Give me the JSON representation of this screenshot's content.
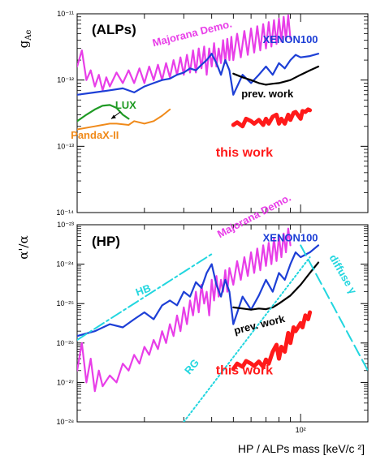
{
  "figure": {
    "xlabel": "HP / ALPs mass [keV/c ²]",
    "x_tick_label": "10²"
  },
  "chart_data": [
    {
      "type": "line",
      "panel": "top",
      "title": "(ALPs)",
      "ylabel": "g_Ae",
      "ylog": true,
      "xlog": true,
      "ylim": [
        1e-14,
        1e-11
      ],
      "xlim": [
        10,
        200
      ],
      "y_tick_labels": [
        "10⁻¹⁴",
        "10⁻¹³",
        "10⁻¹²",
        "10⁻¹¹"
      ],
      "series": [
        {
          "name": "Majorana Demo.",
          "color": "#e83ee8",
          "width": 2.2,
          "x": [
            10,
            10.5,
            11,
            11.5,
            12,
            12.5,
            13,
            13.5,
            14,
            15,
            16,
            17,
            18,
            19,
            20,
            21,
            22,
            23,
            24,
            25,
            26,
            27,
            28,
            29,
            30,
            31,
            32,
            33,
            34,
            35,
            36,
            37,
            38,
            39,
            40,
            41,
            42,
            43,
            44,
            45,
            46,
            47,
            48,
            49,
            50,
            52,
            54,
            56,
            58,
            60,
            62,
            64,
            66,
            68,
            70,
            72,
            74,
            76,
            78,
            80,
            82,
            84,
            86,
            88,
            90
          ],
          "y": [
            1.6e-12,
            2.8e-12,
            1e-12,
            1.4e-12,
            8e-13,
            1.2e-12,
            7e-13,
            1.1e-12,
            8e-13,
            1.3e-12,
            9e-13,
            1.4e-12,
            9e-13,
            1.5e-12,
            9e-13,
            1.6e-12,
            1e-12,
            1.7e-12,
            1e-12,
            1.8e-12,
            1.1e-12,
            2e-12,
            1.2e-12,
            2.2e-12,
            1.2e-12,
            2.4e-12,
            1.3e-12,
            2.8e-12,
            1.3e-12,
            3e-12,
            1.5e-12,
            3.2e-12,
            1.2e-12,
            3e-12,
            1.6e-12,
            3.6e-12,
            1.6e-12,
            3e-12,
            1.8e-12,
            4e-12,
            1.8e-12,
            4.2e-12,
            2e-12,
            4.5e-12,
            2e-12,
            5e-12,
            2.2e-12,
            5.5e-12,
            2.4e-12,
            6e-12,
            2.6e-12,
            6.5e-12,
            2.8e-12,
            7e-12,
            3e-12,
            7.5e-12,
            3.2e-12,
            8e-12,
            3.5e-12,
            8.5e-12,
            3.8e-12,
            9e-12,
            4e-12,
            9.5e-12,
            4.2e-12
          ]
        },
        {
          "name": "XENON100",
          "color": "#1d3fd6",
          "width": 2.2,
          "x": [
            10,
            12,
            14,
            16,
            18,
            20,
            22,
            24,
            26,
            28,
            30,
            32,
            34,
            36,
            38,
            40,
            42,
            44,
            46,
            48,
            50,
            55,
            60,
            65,
            70,
            75,
            80,
            85,
            90,
            95,
            100,
            110,
            120
          ],
          "y": [
            6e-13,
            6.5e-13,
            7e-13,
            7.5e-13,
            6.5e-13,
            8e-13,
            9e-13,
            1e-12,
            1.05e-12,
            1.2e-12,
            1.3e-12,
            1.5e-12,
            1.4e-12,
            1.7e-12,
            2e-12,
            2.5e-12,
            1.8e-12,
            1.2e-12,
            2e-12,
            1.4e-12,
            6e-13,
            1.2e-12,
            9e-13,
            1.2e-12,
            1.6e-12,
            1.2e-12,
            1.8e-12,
            1.5e-12,
            2e-12,
            2.4e-12,
            2.2e-12,
            2.3e-12,
            2.5e-12
          ]
        },
        {
          "name": "prev. work",
          "color": "#000000",
          "width": 2.2,
          "x": [
            50,
            55,
            60,
            65,
            70,
            75,
            80,
            90,
            100,
            110,
            120
          ],
          "y": [
            1.25e-12,
            1.1e-12,
            1e-12,
            9e-13,
            8.5e-13,
            8.8e-13,
            9e-13,
            1e-12,
            1.2e-12,
            1.4e-12,
            1.6e-12
          ]
        },
        {
          "name": "LUX",
          "color": "#1f9a24",
          "width": 2.2,
          "x": [
            10,
            11,
            12,
            13,
            14,
            15,
            16,
            17
          ],
          "y": [
            2.4e-13,
            3e-13,
            3.6e-13,
            4.1e-13,
            4.2e-13,
            3.8e-13,
            3e-13,
            2.6e-13
          ]
        },
        {
          "name": "PandaX-II",
          "color": "#f08a1a",
          "width": 2.0,
          "x": [
            10,
            12,
            14,
            15,
            17,
            18,
            20,
            22,
            24,
            26
          ],
          "y": [
            1.8e-13,
            2e-13,
            2.2e-13,
            2.2e-13,
            2.1e-13,
            2.4e-13,
            2.2e-13,
            2.4e-13,
            2.9e-13,
            3.6e-13
          ]
        },
        {
          "name": "this work",
          "color": "#ff1a1a",
          "width": 5.0,
          "x": [
            50,
            52,
            55,
            57,
            60,
            62,
            65,
            68,
            70,
            72,
            75,
            78,
            80,
            82,
            85,
            88,
            90,
            93,
            95,
            100,
            102,
            105,
            108,
            110
          ],
          "y": [
            2.1e-13,
            2.3e-13,
            2e-13,
            2.6e-13,
            2.4e-13,
            2.2e-13,
            2.5e-13,
            2.1e-13,
            2.6e-13,
            2.2e-13,
            2.8e-13,
            3e-13,
            2.2e-13,
            2.6e-13,
            2.2e-13,
            3e-13,
            2.5e-13,
            3.2e-13,
            3.3e-13,
            2.6e-13,
            3.4e-13,
            3.3e-13,
            3.6e-13,
            3.5e-13
          ]
        }
      ],
      "annotations": [
        {
          "text": "Majorana Demo.",
          "color": "#e83ee8",
          "x": 33,
          "y": 4.5e-12,
          "size": 13,
          "rotate": -14
        },
        {
          "text": "XENON100",
          "color": "#1d3fd6",
          "x": 90,
          "y": 3.6e-12,
          "size": 13,
          "rotate": 0
        },
        {
          "text": "prev. work",
          "color": "#000000",
          "x": 71,
          "y": 5.5e-13,
          "size": 13,
          "rotate": 0
        },
        {
          "text": "LUX",
          "color": "#1f9a24",
          "x": 16.5,
          "y": 3.7e-13,
          "size": 13,
          "rotate": 0
        },
        {
          "text": "PandaX-II",
          "color": "#f08a1a",
          "x": 12,
          "y": 1.3e-13,
          "size": 13,
          "rotate": 0
        },
        {
          "text": "this work",
          "color": "#ff1a1a",
          "x": 56,
          "y": 7e-14,
          "size": 16,
          "rotate": 0
        }
      ]
    },
    {
      "type": "line",
      "panel": "bottom",
      "title": "(HP)",
      "ylabel": "α'/α",
      "ylog": true,
      "xlog": true,
      "ylim": [
        1e-28,
        1e-23
      ],
      "xlim": [
        10,
        200
      ],
      "y_tick_labels": [
        "10⁻²⁸",
        "10⁻²⁷",
        "10⁻²⁶",
        "10⁻²⁵",
        "10⁻²⁴",
        "10⁻²³"
      ],
      "series": [
        {
          "name": "Majorana Demo.",
          "color": "#e83ee8",
          "width": 2.2,
          "x": [
            10,
            10.5,
            11,
            11.5,
            12,
            12.5,
            13,
            14,
            15,
            16,
            17,
            18,
            19,
            20,
            21,
            22,
            23,
            24,
            25,
            26,
            27,
            28,
            29,
            30,
            31,
            32,
            33,
            34,
            35,
            36,
            37,
            38,
            39,
            40,
            41,
            42,
            43,
            44,
            45,
            46,
            47,
            48,
            50,
            52,
            54,
            56,
            58,
            60,
            62,
            64,
            66,
            68,
            70,
            72,
            74,
            76,
            78,
            80,
            82,
            84,
            86,
            88,
            90
          ],
          "y": [
            2e-27,
            1e-26,
            1e-27,
            4e-27,
            6e-28,
            2e-27,
            8e-28,
            1.5e-27,
            1e-27,
            3e-27,
            2e-27,
            5e-27,
            3e-27,
            8e-27,
            5e-27,
            1.2e-26,
            7e-27,
            2e-26,
            1e-26,
            3e-26,
            1.5e-26,
            5e-26,
            2e-26,
            8e-26,
            3e-26,
            1.2e-25,
            5e-26,
            2e-25,
            6e-26,
            3e-25,
            1e-25,
            2e-25,
            5e-26,
            4e-25,
            1.2e-25,
            5e-25,
            1.5e-25,
            4e-25,
            2e-25,
            7e-25,
            2e-25,
            8e-25,
            3e-25,
            1.2e-24,
            4e-25,
            1.5e-24,
            5e-25,
            2e-24,
            6e-25,
            2.5e-24,
            7e-25,
            3e-24,
            9e-25,
            3.5e-24,
            1e-24,
            4.5e-24,
            1.2e-24,
            5e-24,
            1.5e-24,
            6e-24,
            2e-24,
            8e-24,
            3e-24
          ]
        },
        {
          "name": "XENON100",
          "color": "#1d3fd6",
          "width": 2.2,
          "x": [
            10,
            12,
            14,
            16,
            18,
            20,
            22,
            24,
            26,
            28,
            30,
            32,
            34,
            36,
            38,
            40,
            42,
            44,
            46,
            48,
            50,
            55,
            60,
            65,
            70,
            75,
            80,
            85,
            90,
            95,
            100,
            110,
            120
          ],
          "y": [
            1.5e-26,
            2e-26,
            3e-26,
            2.5e-26,
            4e-26,
            6e-26,
            4e-26,
            9e-26,
            1.2e-25,
            9e-26,
            2e-25,
            1.5e-25,
            3.5e-25,
            2.5e-25,
            6e-25,
            1e-24,
            3e-25,
            1.5e-25,
            4e-25,
            2e-25,
            3e-26,
            1.5e-25,
            7e-26,
            1.6e-25,
            4e-25,
            2e-25,
            6e-25,
            4e-25,
            1e-24,
            2e-24,
            1.5e-24,
            2e-24,
            3e-24
          ]
        },
        {
          "name": "prev. work",
          "color": "#000000",
          "width": 2.2,
          "x": [
            50,
            55,
            60,
            65,
            70,
            75,
            80,
            90,
            100,
            110,
            120
          ],
          "y": [
            8e-26,
            7.5e-26,
            7e-26,
            7.5e-26,
            7.2e-26,
            8e-26,
            1e-25,
            1.6e-25,
            3e-25,
            6e-25,
            1.1e-24
          ]
        },
        {
          "name": "this work",
          "color": "#ff1a1a",
          "width": 5.0,
          "x": [
            50,
            52,
            55,
            57,
            60,
            62,
            65,
            68,
            70,
            72,
            75,
            78,
            80,
            82,
            85,
            88,
            90,
            93,
            95,
            100,
            102,
            105,
            108,
            110
          ],
          "y": [
            2.2e-27,
            3e-27,
            2.5e-27,
            3.5e-27,
            3e-27,
            2.6e-27,
            3.4e-27,
            2.5e-27,
            3.8e-27,
            3e-27,
            6e-27,
            9e-27,
            4e-27,
            8e-27,
            6e-27,
            1.8e-26,
            1e-26,
            2.5e-26,
            2e-26,
            3.2e-26,
            2.5e-26,
            5e-26,
            4e-26,
            6e-26
          ]
        },
        {
          "name": "HB",
          "color": "#22d6df",
          "width": 2.0,
          "dash": "14,4,3,4",
          "x": [
            10,
            40
          ],
          "y": [
            1.2e-26,
            1.8e-24
          ]
        },
        {
          "name": "RG",
          "color": "#22d6df",
          "width": 2.0,
          "dash": "2,3",
          "x": [
            30,
            110
          ],
          "y": [
            1e-28,
            1.5e-24
          ]
        },
        {
          "name": "diffuse γ",
          "color": "#22d6df",
          "width": 2.0,
          "dash": "14,6",
          "x": [
            100,
            200
          ],
          "y": [
            3e-24,
            2e-27
          ]
        }
      ],
      "annotations": [
        {
          "text": "Majorana Demo.",
          "color": "#e83ee8",
          "x": 63,
          "y": 1.4e-23,
          "size": 13,
          "rotate": -28
        },
        {
          "text": "XENON100",
          "color": "#1d3fd6",
          "x": 90,
          "y": 3.8e-24,
          "size": 13,
          "rotate": 0
        },
        {
          "text": "prev. work",
          "color": "#000000",
          "x": 66,
          "y": 2.4e-26,
          "size": 13,
          "rotate": -14
        },
        {
          "text": "HB",
          "color": "#22d6df",
          "x": 20,
          "y": 1.8e-25,
          "size": 13,
          "rotate": -20
        },
        {
          "text": "RG",
          "color": "#22d6df",
          "x": 33.5,
          "y": 2.2e-27,
          "size": 13,
          "rotate": -50
        },
        {
          "text": "diffuse γ",
          "color": "#22d6df",
          "x": 150,
          "y": 5e-25,
          "size": 13,
          "rotate": 60
        },
        {
          "text": "this work",
          "color": "#ff1a1a",
          "x": 56,
          "y": 1.6e-27,
          "size": 16,
          "rotate": 0
        }
      ]
    }
  ]
}
